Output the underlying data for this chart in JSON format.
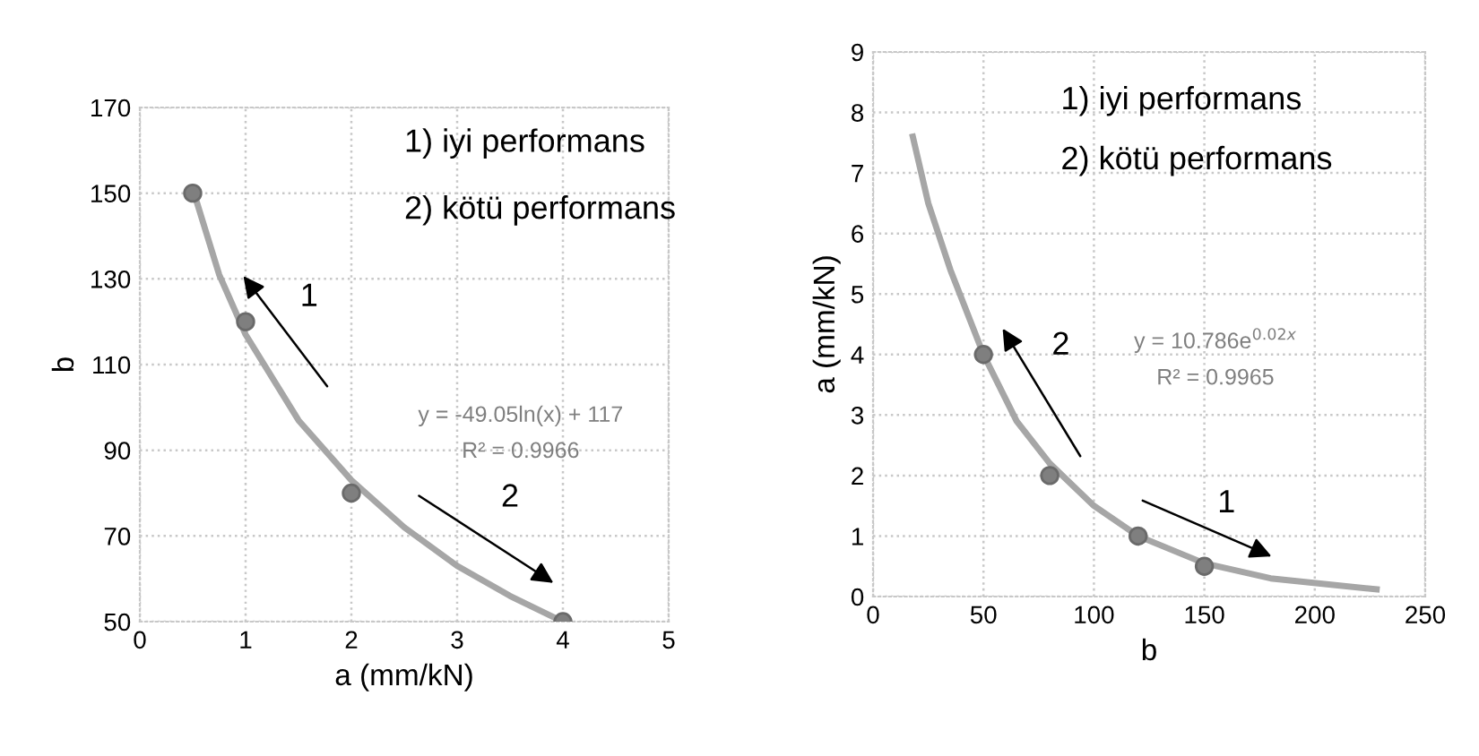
{
  "chart_data": [
    {
      "type": "scatter",
      "xlabel": "a (mm/kN)",
      "ylabel": "b",
      "xlim": [
        0,
        5
      ],
      "xticks": [
        0,
        1,
        2,
        3,
        4,
        5
      ],
      "ylim": [
        50,
        170
      ],
      "yticks": [
        50,
        70,
        90,
        110,
        130,
        150,
        170
      ],
      "grid": true,
      "legend": false,
      "marker": "circle",
      "series": [
        {
          "color": "#7f7f7f",
          "x": [
            0.5,
            1,
            2,
            4
          ],
          "values": [
            150,
            120,
            80,
            50
          ]
        },
        {
          "type": "line",
          "color": "#a6a6a6",
          "marker": "none",
          "line_style": "solid",
          "x": [
            0.5,
            0.75,
            1,
            1.5,
            2,
            2.5,
            3,
            3.5,
            4
          ],
          "values": [
            151,
            131,
            117,
            97,
            83,
            72,
            63,
            56,
            50
          ]
        }
      ],
      "annotations": [
        "1) iyi performans",
        "2) kötü performans",
        "y = -49.05ln(x) + 117",
        "R² = 0.9966",
        "1",
        "2"
      ]
    },
    {
      "type": "scatter",
      "xlabel": "b",
      "ylabel": "a (mm/kN)",
      "xlim": [
        0,
        250
      ],
      "xticks": [
        0,
        50,
        100,
        150,
        200,
        250
      ],
      "ylim": [
        0,
        9
      ],
      "yticks": [
        0,
        1,
        2,
        3,
        4,
        5,
        6,
        7,
        8,
        9
      ],
      "grid": true,
      "legend": false,
      "marker": "circle",
      "series": [
        {
          "color": "#7f7f7f",
          "x": [
            50,
            80,
            120,
            150
          ],
          "values": [
            4,
            2,
            1,
            0.5
          ]
        },
        {
          "type": "line",
          "color": "#a6a6a6",
          "marker": "none",
          "line_style": "solid",
          "x": [
            18,
            25,
            35,
            50,
            65,
            80,
            100,
            120,
            150,
            180,
            228
          ],
          "values": [
            7.6,
            6.5,
            5.4,
            4.0,
            2.9,
            2.2,
            1.5,
            1.0,
            0.55,
            0.3,
            0.12
          ]
        }
      ],
      "annotations": [
        "1) iyi performans",
        "2) kötü performans",
        "y = 10.786e$^{0.02x}$",
        "R² = 0.9965",
        "2",
        "1"
      ]
    }
  ]
}
